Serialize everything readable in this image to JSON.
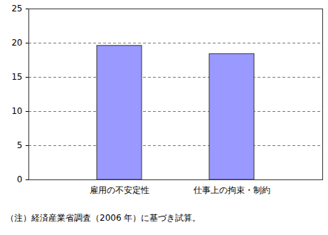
{
  "chart_data": {
    "type": "bar",
    "categories": [
      "雇用の不安定性",
      "仕事上の拘束・制約"
    ],
    "values": [
      19.6,
      18.4
    ],
    "color": "#9999ff",
    "ylim": [
      0,
      25
    ],
    "yticks": [
      0,
      5,
      10,
      15,
      20,
      25
    ],
    "grid": true,
    "caption": "（注）経済産業省調査（2006 年）に基づき試算。"
  }
}
